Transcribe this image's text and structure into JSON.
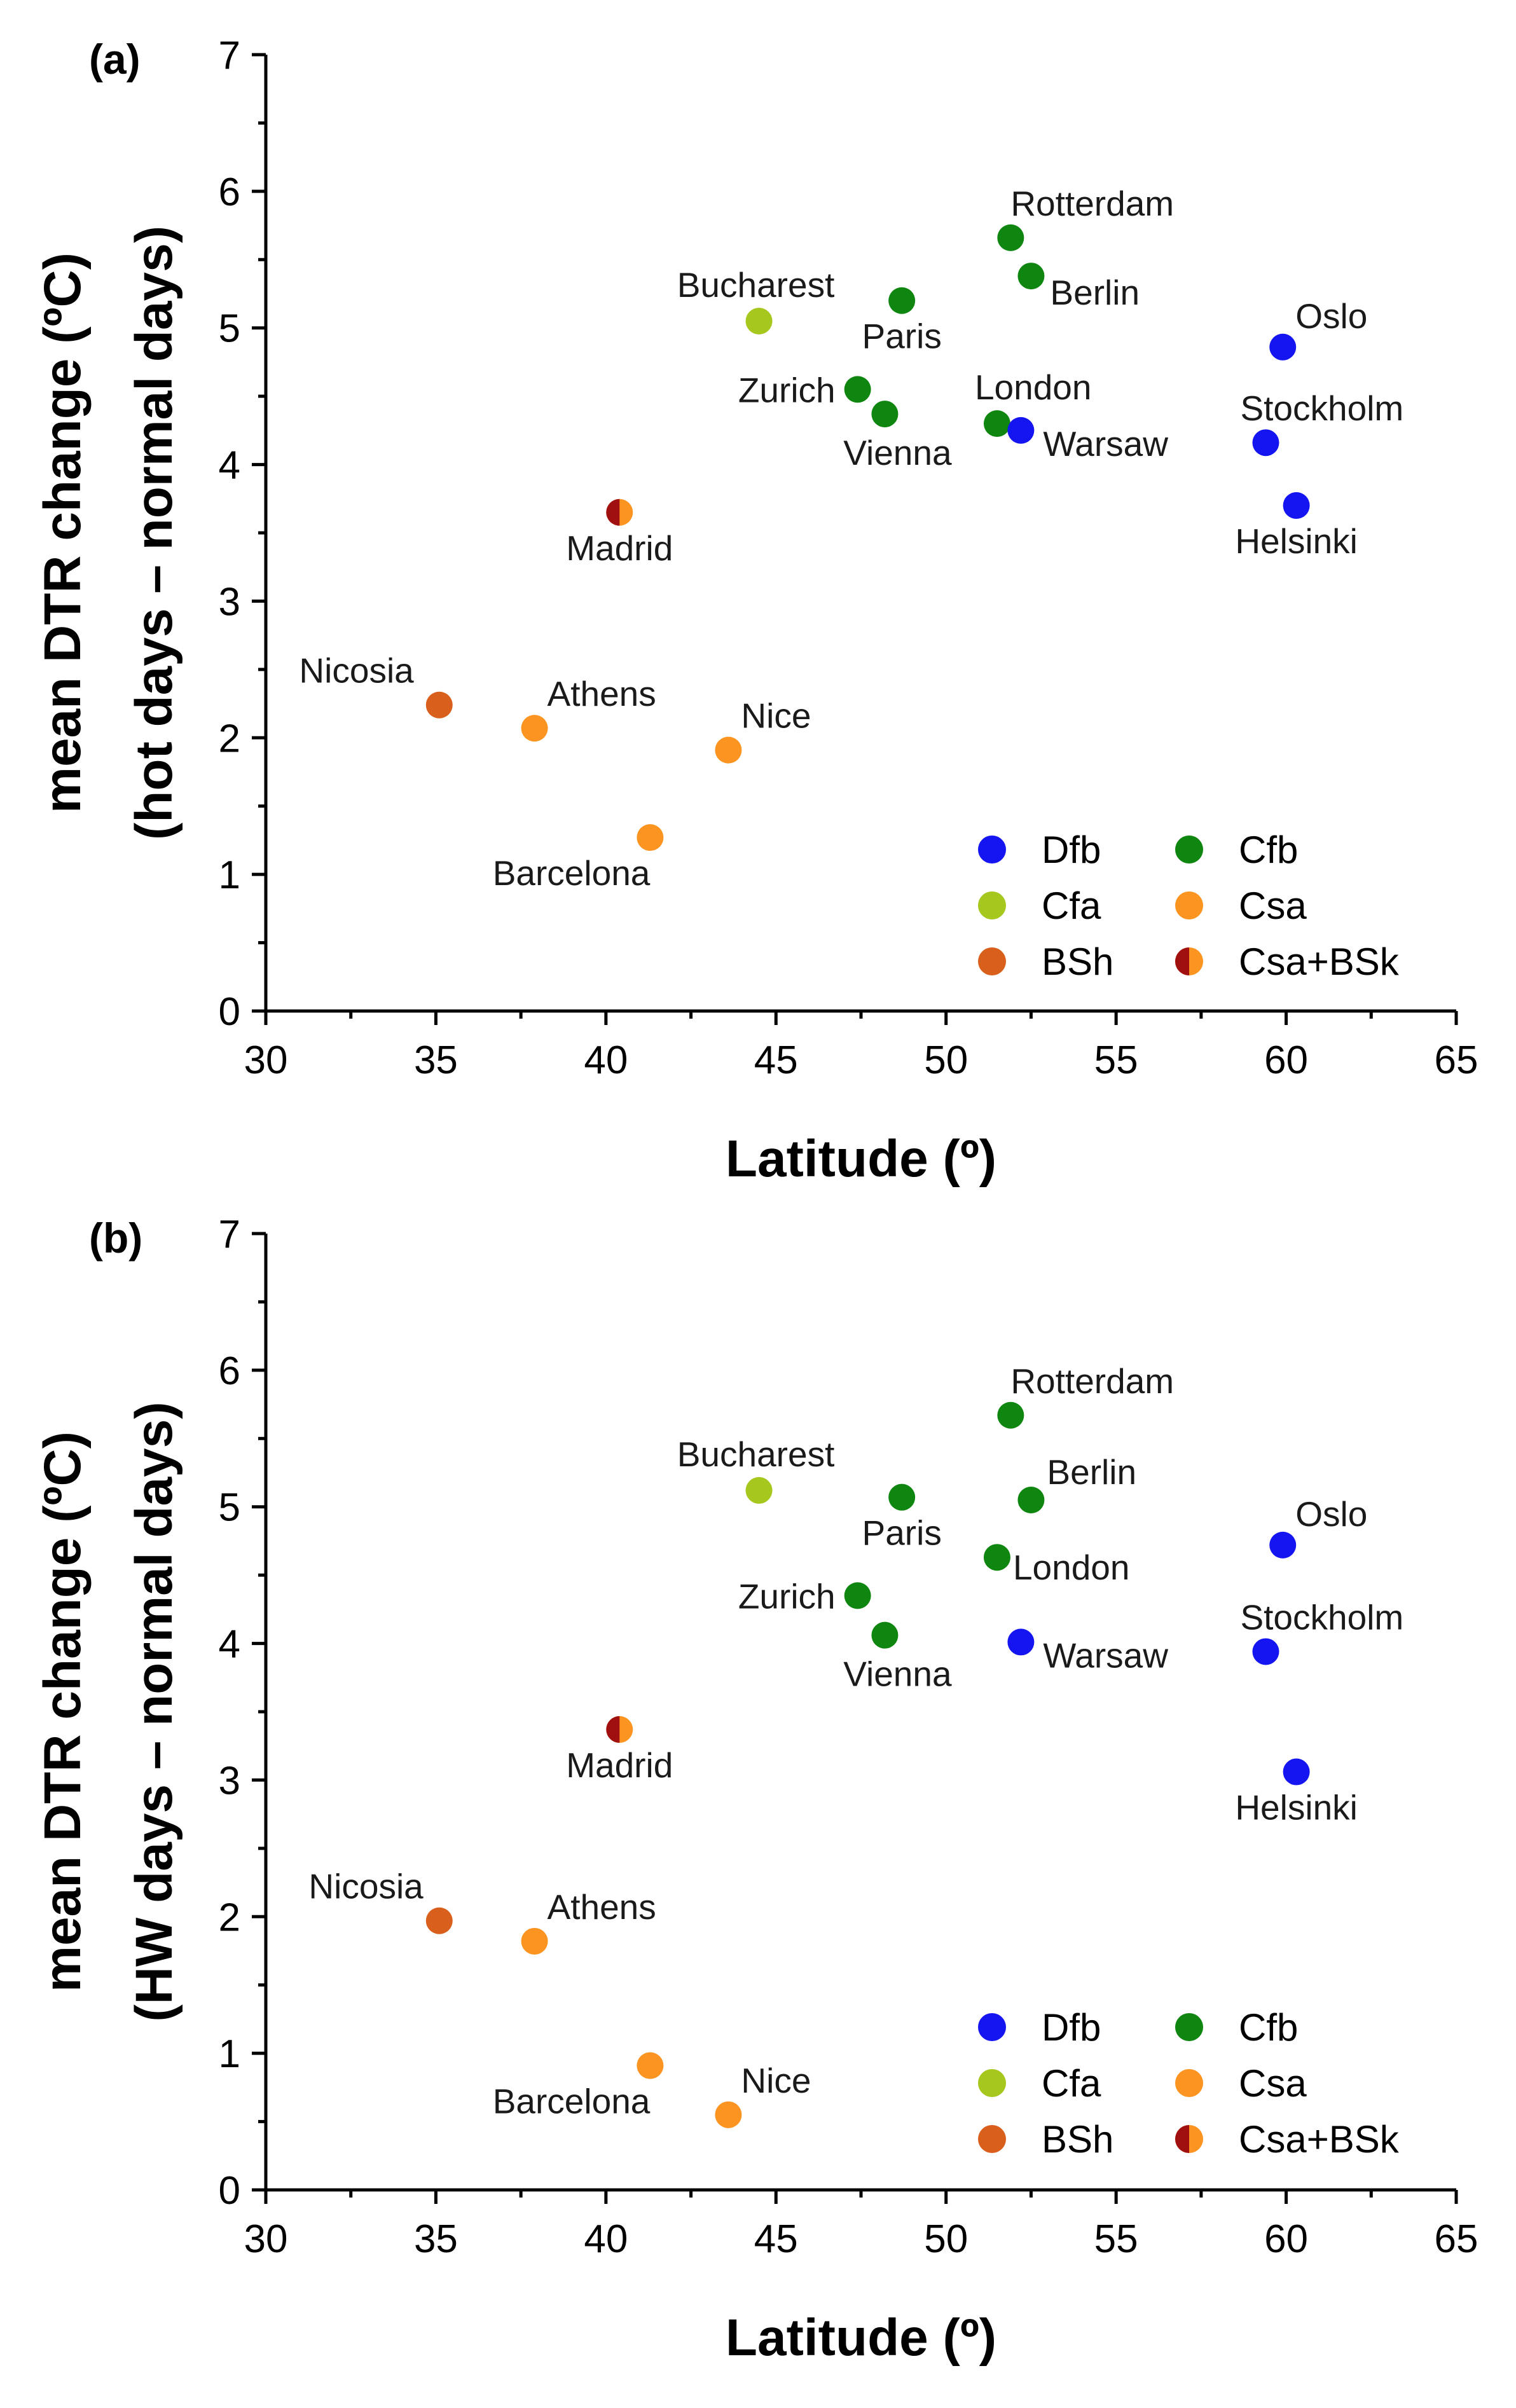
{
  "chart_data": [
    {
      "type": "scatter",
      "panel_label": "(a)",
      "xlabel": "Latitude (º)",
      "ylabel_line1": "mean DTR change (ºC)",
      "ylabel_line2": "(hot days – normal days)",
      "xlim": [
        30,
        65
      ],
      "ylim": [
        0,
        7
      ],
      "xticks": [
        30,
        35,
        40,
        45,
        50,
        55,
        60,
        65
      ],
      "yticks": [
        0,
        1,
        2,
        3,
        4,
        5,
        6,
        7
      ],
      "points": [
        {
          "city": "Rotterdam",
          "lat": 51.9,
          "value": 5.66,
          "class": "Cfb"
        },
        {
          "city": "Berlin",
          "lat": 52.5,
          "value": 5.38,
          "class": "Cfb"
        },
        {
          "city": "Paris",
          "lat": 48.7,
          "value": 5.2,
          "class": "Cfb"
        },
        {
          "city": "Bucharest",
          "lat": 44.5,
          "value": 5.05,
          "class": "Cfa"
        },
        {
          "city": "Oslo",
          "lat": 59.9,
          "value": 4.86,
          "class": "Dfb"
        },
        {
          "city": "Zurich",
          "lat": 47.4,
          "value": 4.55,
          "class": "Cfb"
        },
        {
          "city": "Vienna",
          "lat": 48.2,
          "value": 4.37,
          "class": "Cfb"
        },
        {
          "city": "London",
          "lat": 51.5,
          "value": 4.3,
          "class": "Cfb"
        },
        {
          "city": "Warsaw",
          "lat": 52.2,
          "value": 4.25,
          "class": "Dfb"
        },
        {
          "city": "Stockholm",
          "lat": 59.4,
          "value": 4.16,
          "class": "Dfb"
        },
        {
          "city": "Helsinki",
          "lat": 60.3,
          "value": 3.7,
          "class": "Dfb"
        },
        {
          "city": "Madrid",
          "lat": 40.4,
          "value": 3.65,
          "class": "Csa+BSk"
        },
        {
          "city": "Nicosia",
          "lat": 35.1,
          "value": 2.24,
          "class": "BSh"
        },
        {
          "city": "Athens",
          "lat": 37.9,
          "value": 2.07,
          "class": "Csa"
        },
        {
          "city": "Nice",
          "lat": 43.6,
          "value": 1.91,
          "class": "Csa"
        },
        {
          "city": "Barcelona",
          "lat": 41.3,
          "value": 1.27,
          "class": "Csa"
        }
      ]
    },
    {
      "type": "scatter",
      "panel_label": "(b)",
      "xlabel": "Latitude (º)",
      "ylabel_line1": "mean DTR change (ºC)",
      "ylabel_line2": "(HW days – normal days)",
      "xlim": [
        30,
        65
      ],
      "ylim": [
        0,
        7
      ],
      "xticks": [
        30,
        35,
        40,
        45,
        50,
        55,
        60,
        65
      ],
      "yticks": [
        0,
        1,
        2,
        3,
        4,
        5,
        6,
        7
      ],
      "points": [
        {
          "city": "Rotterdam",
          "lat": 51.9,
          "value": 5.67,
          "class": "Cfb"
        },
        {
          "city": "Bucharest",
          "lat": 44.5,
          "value": 5.12,
          "class": "Cfa"
        },
        {
          "city": "Paris",
          "lat": 48.7,
          "value": 5.07,
          "class": "Cfb"
        },
        {
          "city": "Berlin",
          "lat": 52.5,
          "value": 5.05,
          "class": "Cfb"
        },
        {
          "city": "Oslo",
          "lat": 59.9,
          "value": 4.72,
          "class": "Dfb"
        },
        {
          "city": "London",
          "lat": 51.5,
          "value": 4.63,
          "class": "Cfb"
        },
        {
          "city": "Zurich",
          "lat": 47.4,
          "value": 4.35,
          "class": "Cfb"
        },
        {
          "city": "Vienna",
          "lat": 48.2,
          "value": 4.06,
          "class": "Cfb"
        },
        {
          "city": "Warsaw",
          "lat": 52.2,
          "value": 4.01,
          "class": "Dfb"
        },
        {
          "city": "Stockholm",
          "lat": 59.4,
          "value": 3.94,
          "class": "Dfb"
        },
        {
          "city": "Madrid",
          "lat": 40.4,
          "value": 3.37,
          "class": "Csa+BSk"
        },
        {
          "city": "Helsinki",
          "lat": 60.3,
          "value": 3.06,
          "class": "Dfb"
        },
        {
          "city": "Nicosia",
          "lat": 35.1,
          "value": 1.97,
          "class": "BSh"
        },
        {
          "city": "Athens",
          "lat": 37.9,
          "value": 1.82,
          "class": "Csa"
        },
        {
          "city": "Barcelona",
          "lat": 41.3,
          "value": 0.91,
          "class": "Csa"
        },
        {
          "city": "Nice",
          "lat": 43.6,
          "value": 0.55,
          "class": "Csa"
        }
      ]
    }
  ],
  "legend": [
    {
      "key": "Dfb",
      "color": "#1515f2"
    },
    {
      "key": "Cfb",
      "color": "#0f860f"
    },
    {
      "key": "Cfa",
      "color": "#a6c81e"
    },
    {
      "key": "Csa",
      "color": "#fb9420"
    },
    {
      "key": "BSh",
      "color": "#d9601c"
    },
    {
      "key": "Csa+BSk",
      "color": "#fb9420",
      "secondary_color": "#a01010"
    }
  ]
}
